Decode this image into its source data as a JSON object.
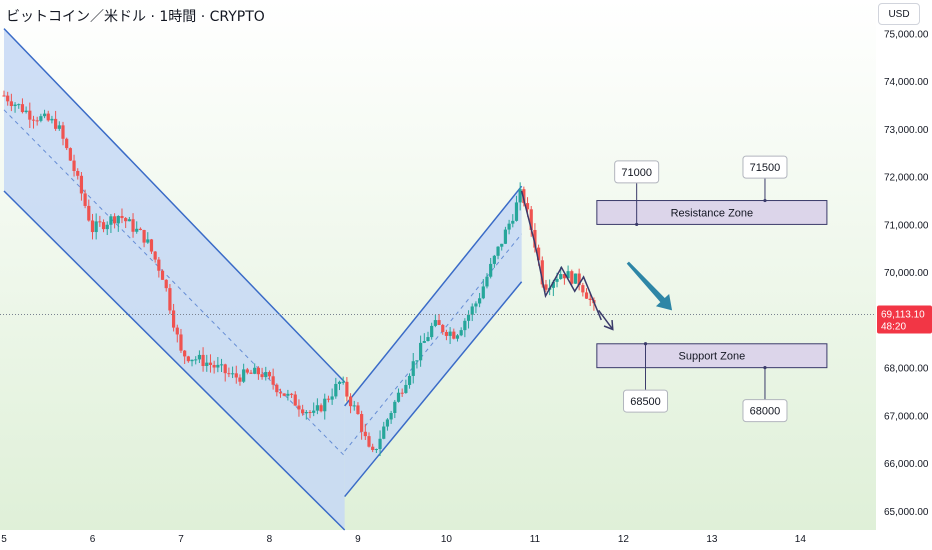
{
  "title": "ビットコイン／米ドル · 1時間 · CRYPTO",
  "currency": "USD",
  "chart_data": {
    "type": "candlestick",
    "xlabel": "",
    "ylabel": "",
    "ylim": [
      64600,
      75700
    ],
    "xlim": [
      5,
      14.9
    ],
    "x_ticks": [
      "5",
      "6",
      "7",
      "8",
      "9",
      "10",
      "11",
      "12",
      "13",
      "14"
    ],
    "y_ticks": [
      "65,000.00",
      "66,000.00",
      "67,000.00",
      "68,000.00",
      "69,000.00",
      "70,000.00",
      "71,000.00",
      "72,000.00",
      "73,000.00",
      "74,000.00",
      "75,000.00"
    ],
    "last_price": "69,113.10",
    "countdown": "48:20",
    "colors": {
      "up": "#26a69a",
      "down": "#ef5350",
      "channel_fill": "#c5d8f5",
      "channel_line": "#3a6bc7",
      "zone_fill": "#dcd5ea",
      "zone_border": "#3a3a6a",
      "arrow": "#2e86a6",
      "price_badge": "#f23645",
      "bg_top": "#ffffff",
      "bg_bottom": "#dff0d8"
    },
    "keypoints": [
      [
        5.0,
        73700
      ],
      [
        5.3,
        73300
      ],
      [
        5.6,
        73100
      ],
      [
        5.8,
        72100
      ],
      [
        6.0,
        70900
      ],
      [
        6.3,
        71200
      ],
      [
        6.6,
        70700
      ],
      [
        6.8,
        69900
      ],
      [
        7.0,
        68300
      ],
      [
        7.3,
        68100
      ],
      [
        7.6,
        67800
      ],
      [
        7.9,
        67900
      ],
      [
        8.2,
        67400
      ],
      [
        8.5,
        67000
      ],
      [
        8.8,
        67700
      ],
      [
        9.0,
        67000
      ],
      [
        9.15,
        66100
      ],
      [
        9.35,
        67000
      ],
      [
        9.6,
        68000
      ],
      [
        9.85,
        68900
      ],
      [
        10.1,
        68700
      ],
      [
        10.35,
        69400
      ],
      [
        10.5,
        70100
      ],
      [
        10.75,
        71200
      ],
      [
        10.85,
        71700
      ],
      [
        11.0,
        70600
      ],
      [
        11.1,
        69700
      ],
      [
        11.3,
        70000
      ],
      [
        11.5,
        69800
      ],
      [
        11.6,
        69500
      ],
      [
        11.7,
        69100
      ]
    ],
    "channels": [
      {
        "name": "falling",
        "top": [
          [
            5.0,
            75100
          ],
          [
            8.85,
            67700
          ]
        ],
        "bottom": [
          [
            5.0,
            71700
          ],
          [
            8.85,
            64600
          ]
        ]
      },
      {
        "name": "rising",
        "top": [
          [
            8.85,
            67200
          ],
          [
            10.85,
            71800
          ]
        ],
        "bottom": [
          [
            8.85,
            65300
          ],
          [
            10.85,
            69800
          ]
        ]
      }
    ],
    "zones": [
      {
        "label": "Resistance Zone",
        "from": 71000,
        "to": 71500,
        "x0": 11.7,
        "x1": 14.3
      },
      {
        "label": "Support Zone",
        "from": 68000,
        "to": 68500,
        "x0": 11.7,
        "x1": 14.3
      }
    ],
    "level_labels": [
      {
        "text": "71000",
        "x": 12.15,
        "y": 72100,
        "anchor_y": 71000
      },
      {
        "text": "71500",
        "x": 13.6,
        "y": 72200,
        "anchor_y": 71500
      },
      {
        "text": "68500",
        "x": 12.25,
        "y": 67300,
        "anchor_y": 68500
      },
      {
        "text": "68000",
        "x": 13.6,
        "y": 67100,
        "anchor_y": 68000
      }
    ],
    "arrows": [
      {
        "from": [
          12.05,
          70200
        ],
        "to": [
          12.55,
          69200
        ],
        "style": "filled"
      },
      {
        "from": [
          11.72,
          69200
        ],
        "to": [
          11.88,
          68800
        ],
        "style": "line"
      }
    ],
    "zigzag": [
      [
        10.85,
        71700
      ],
      [
        11.0,
        70600
      ],
      [
        11.12,
        69500
      ],
      [
        11.3,
        70100
      ],
      [
        11.45,
        69600
      ],
      [
        11.55,
        69900
      ],
      [
        11.75,
        69000
      ]
    ]
  }
}
